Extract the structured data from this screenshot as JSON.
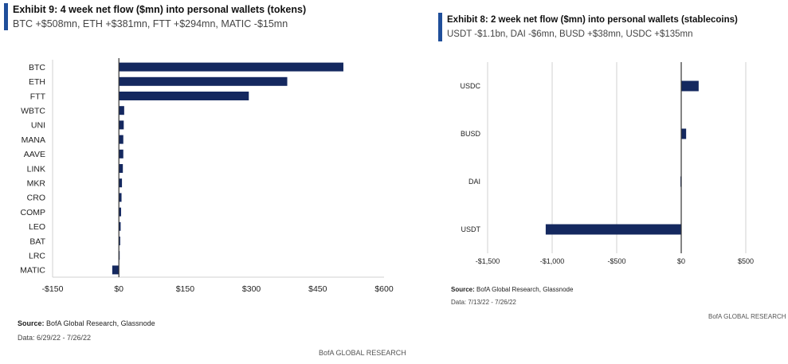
{
  "left": {
    "title": "Exhibit 9: 4 week net flow ($mn) into personal wallets (tokens)",
    "subtitle": "BTC +$508mn, ETH +$381mn, FTT +$294mn, MATIC -$15mn",
    "source_label": "Source:",
    "source_text": "BofA Global Research, Glassnode",
    "date_text": "Data: 6/29/22 - 7/26/22",
    "brand": "BofA GLOBAL RESEARCH"
  },
  "right": {
    "title": "Exhibit 8: 2 week net flow ($mn) into personal wallets (stablecoins)",
    "subtitle": "USDT -$1.1bn, DAI -$6mn, BUSD +$38mn, USDC +$135mn",
    "source_label": "Source:",
    "source_text": "BofA Global Research, Glassnode",
    "date_text": "Data: 7/13/22 - 7/26/22",
    "brand": "BofA GLOBAL RESEARCH"
  },
  "colors": {
    "bar": "#14285f",
    "accent": "#1f4e9a",
    "grid": "#d0d0d0",
    "axis": "#333333"
  },
  "chart_data": [
    {
      "type": "bar",
      "orientation": "horizontal",
      "title": "Exhibit 9: 4 week net flow ($mn) into personal wallets (tokens)",
      "categories": [
        "BTC",
        "ETH",
        "FTT",
        "WBTC",
        "UNI",
        "MANA",
        "AAVE",
        "LINK",
        "MKR",
        "CRO",
        "COMP",
        "LEO",
        "BAT",
        "LRC",
        "MATIC"
      ],
      "values": [
        508,
        381,
        294,
        12,
        11,
        10,
        10,
        9,
        7,
        6,
        5,
        4,
        3,
        1,
        -15
      ],
      "xlim": [
        -150,
        600
      ],
      "ticks": [
        -150,
        0,
        150,
        300,
        450,
        600
      ],
      "tick_labels": [
        "-$150",
        "$0",
        "$150",
        "$300",
        "$450",
        "$600"
      ],
      "gridlines": false
    },
    {
      "type": "bar",
      "orientation": "horizontal",
      "title": "Exhibit 8: 2 week net flow ($mn) into personal wallets (stablecoins)",
      "categories": [
        "USDC",
        "BUSD",
        "DAI",
        "USDT"
      ],
      "values": [
        135,
        38,
        -6,
        -1050
      ],
      "xlim": [
        -1500,
        500
      ],
      "ticks": [
        -1500,
        -1000,
        -500,
        0,
        500
      ],
      "tick_labels": [
        "-$1,500",
        "-$1,000",
        "-$500",
        "$0",
        "$500"
      ],
      "gridlines": true
    }
  ]
}
